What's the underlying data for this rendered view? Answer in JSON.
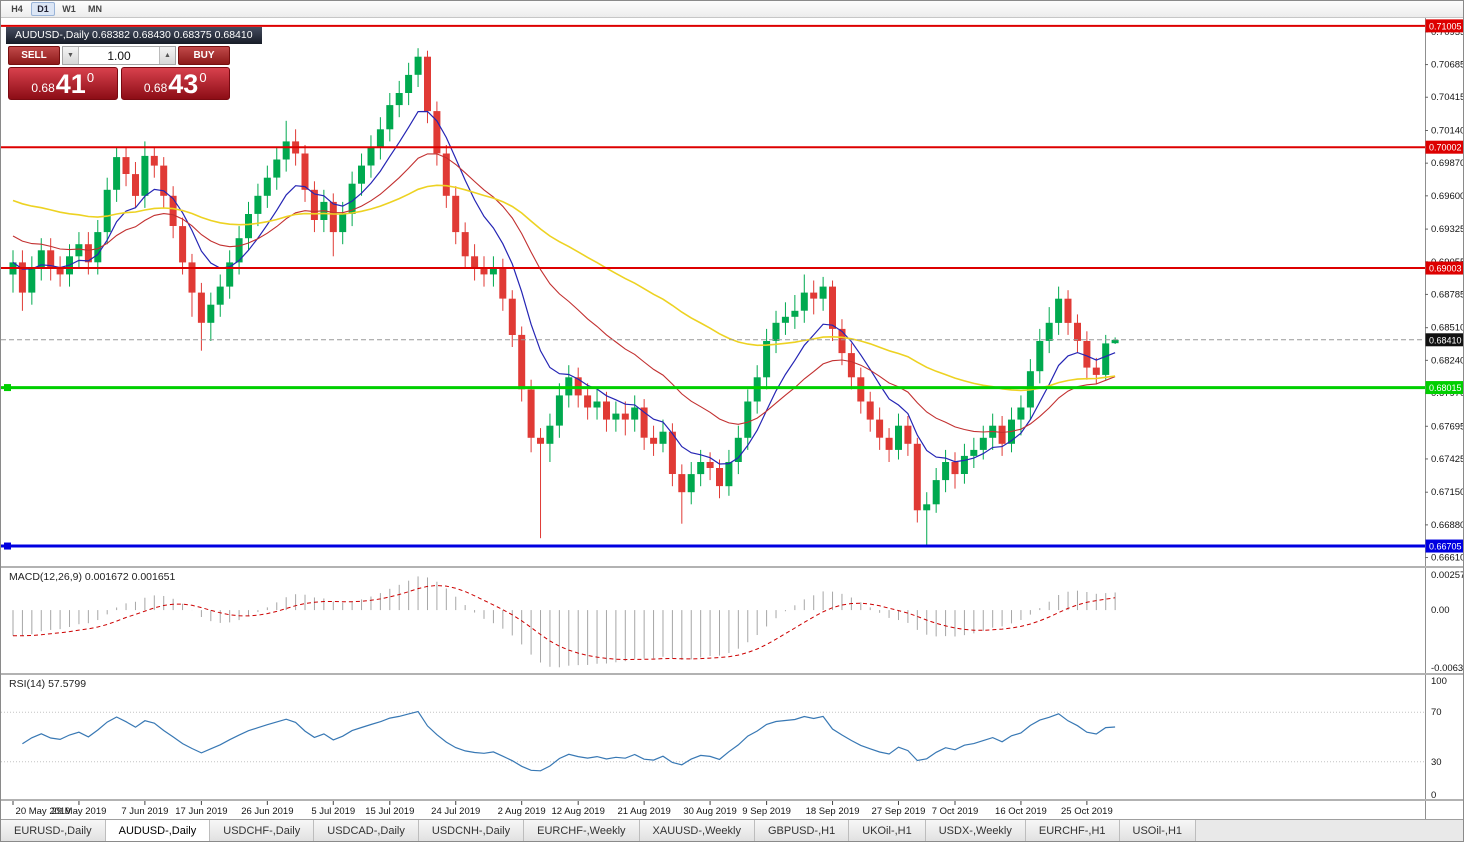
{
  "window": {
    "timeframe_buttons": [
      {
        "label": "H4",
        "active": false
      },
      {
        "label": "D1",
        "active": true
      },
      {
        "label": "W1",
        "active": false
      },
      {
        "label": "MN",
        "active": false
      }
    ],
    "chart_title": "AUDUSD-,Daily  0.68382 0.68430 0.68375 0.68410"
  },
  "trade_panel": {
    "sell_label": "SELL",
    "buy_label": "BUY",
    "volume": "1.00",
    "volume_down_glyph": "▼",
    "volume_up_glyph": "▲",
    "sell_price": {
      "prefix": "0.68",
      "big": "41",
      "sup": "0"
    },
    "buy_price": {
      "prefix": "0.68",
      "big": "43",
      "sup": "0"
    }
  },
  "indicators": {
    "macd": {
      "name": "MACD(12,26,9)",
      "values": "0.001672 0.001651",
      "scale_top": "0.002574",
      "scale_zero": "0.00",
      "scale_bottom": "-0.006326"
    },
    "rsi": {
      "name": "RSI(14)",
      "value": "57.5799",
      "scale": [
        "100",
        "70",
        "30",
        "0"
      ],
      "levels": [
        70,
        30
      ]
    }
  },
  "tabs": [
    {
      "label": "EURUSD-,Daily",
      "active": false
    },
    {
      "label": "AUDUSD-,Daily",
      "active": true
    },
    {
      "label": "USDCHF-,Daily",
      "active": false
    },
    {
      "label": "USDCAD-,Daily",
      "active": false
    },
    {
      "label": "USDCNH-,Daily",
      "active": false
    },
    {
      "label": "EURCHF-,Weekly",
      "active": false
    },
    {
      "label": "XAUUSD-,Weekly",
      "active": false
    },
    {
      "label": "GBPUSD-,H1",
      "active": false
    },
    {
      "label": "UKOil-,H1",
      "active": false
    },
    {
      "label": "USDX-,Weekly",
      "active": false
    },
    {
      "label": "EURCHF-,H1",
      "active": false
    },
    {
      "label": "USOil-,H1",
      "active": false
    }
  ],
  "chart_data": {
    "type": "candlestick",
    "title": "AUDUSD-,Daily",
    "symbol": "AUDUSD-",
    "timeframe": "Daily",
    "y_range": [
      0.6654,
      0.7107
    ],
    "x_step": 9.42,
    "up_color": "#00a94f",
    "down_color": "#e03a35",
    "price_ticks": [
      "0.70955",
      "0.70685",
      "0.70415",
      "0.70140",
      "0.69870",
      "0.69600",
      "0.69325",
      "0.69055",
      "0.68785",
      "0.68510",
      "0.68240",
      "0.67970",
      "0.67695",
      "0.67425",
      "0.67150",
      "0.66880",
      "0.66610"
    ],
    "levels": [
      {
        "price": 0.71005,
        "label": "0.71005",
        "color": "#dd0000",
        "width": 2,
        "handles": false
      },
      {
        "price": 0.70002,
        "label": "0.70002",
        "color": "#dd0000",
        "width": 2,
        "handles": false
      },
      {
        "price": 0.69003,
        "label": "0.69003",
        "color": "#dd0000",
        "width": 2,
        "handles": false
      },
      {
        "price": 0.68015,
        "label": "0.68015",
        "color": "#00cf00",
        "width": 3,
        "handles": true
      },
      {
        "price": 0.66705,
        "label": "0.66705",
        "color": "#0000e0",
        "width": 3,
        "handles": true
      }
    ],
    "current_price": {
      "value": 0.6841,
      "label": "0.68410",
      "badge_color": "#111111"
    },
    "ma": [
      {
        "name": "fast",
        "period": 8,
        "color": "#2525b4",
        "seed": 0.6905,
        "width": 1.2
      },
      {
        "name": "medium",
        "period": 21,
        "color": "#c23030",
        "seed": 0.6929,
        "width": 1.1
      },
      {
        "name": "slow",
        "period": 55,
        "color": "#edd222",
        "seed": 0.6958,
        "width": 1.6
      }
    ],
    "macd_params": [
      12,
      26,
      9
    ],
    "macd_seed_offset": 0.0025,
    "rsi_period": 14,
    "time_labels": [
      [
        "20 May 2019",
        0
      ],
      [
        "29 May 2019",
        7
      ],
      [
        "7 Jun 2019",
        14
      ],
      [
        "17 Jun 2019",
        20
      ],
      [
        "26 Jun 2019",
        27
      ],
      [
        "5 Jul 2019",
        34
      ],
      [
        "15 Jul 2019",
        40
      ],
      [
        "24 Jul 2019",
        47
      ],
      [
        "2 Aug 2019",
        54
      ],
      [
        "12 Aug 2019",
        60
      ],
      [
        "21 Aug 2019",
        67
      ],
      [
        "30 Aug 2019",
        74
      ],
      [
        "9 Sep 2019",
        80
      ],
      [
        "18 Sep 2019",
        87
      ],
      [
        "27 Sep 2019",
        94
      ],
      [
        "7 Oct 2019",
        100
      ],
      [
        "16 Oct 2019",
        107
      ],
      [
        "25 Oct 2019",
        114
      ]
    ],
    "ohlc": [
      [
        0.6895,
        0.6915,
        0.688,
        0.6905
      ],
      [
        0.6905,
        0.6915,
        0.6865,
        0.688
      ],
      [
        0.688,
        0.691,
        0.687,
        0.69
      ],
      [
        0.69,
        0.6925,
        0.689,
        0.6915
      ],
      [
        0.6915,
        0.6925,
        0.689,
        0.69
      ],
      [
        0.69,
        0.691,
        0.6885,
        0.6895
      ],
      [
        0.6895,
        0.692,
        0.6885,
        0.691
      ],
      [
        0.691,
        0.693,
        0.69,
        0.692
      ],
      [
        0.692,
        0.693,
        0.6895,
        0.6905
      ],
      [
        0.6905,
        0.694,
        0.6895,
        0.693
      ],
      [
        0.693,
        0.6975,
        0.692,
        0.6965
      ],
      [
        0.6965,
        0.7,
        0.6955,
        0.6992
      ],
      [
        0.6992,
        0.7,
        0.6968,
        0.6978
      ],
      [
        0.6978,
        0.6988,
        0.695,
        0.696
      ],
      [
        0.696,
        0.7005,
        0.695,
        0.6993
      ],
      [
        0.6993,
        0.7,
        0.6975,
        0.6985
      ],
      [
        0.6985,
        0.6992,
        0.695,
        0.696
      ],
      [
        0.696,
        0.6968,
        0.6925,
        0.6935
      ],
      [
        0.6935,
        0.6942,
        0.6895,
        0.6905
      ],
      [
        0.6905,
        0.6912,
        0.686,
        0.688
      ],
      [
        0.688,
        0.6888,
        0.6832,
        0.6855
      ],
      [
        0.6855,
        0.688,
        0.684,
        0.687
      ],
      [
        0.687,
        0.6895,
        0.686,
        0.6885
      ],
      [
        0.6885,
        0.6915,
        0.6875,
        0.6905
      ],
      [
        0.6905,
        0.6935,
        0.6895,
        0.6925
      ],
      [
        0.6925,
        0.6955,
        0.6915,
        0.6945
      ],
      [
        0.6945,
        0.697,
        0.6935,
        0.696
      ],
      [
        0.696,
        0.6985,
        0.695,
        0.6975
      ],
      [
        0.6975,
        0.7,
        0.6965,
        0.699
      ],
      [
        0.699,
        0.7022,
        0.698,
        0.7005
      ],
      [
        0.7005,
        0.7015,
        0.6985,
        0.6995
      ],
      [
        0.6995,
        0.7002,
        0.6955,
        0.6965
      ],
      [
        0.6965,
        0.6972,
        0.693,
        0.694
      ],
      [
        0.694,
        0.6965,
        0.693,
        0.6955
      ],
      [
        0.6955,
        0.6962,
        0.691,
        0.693
      ],
      [
        0.693,
        0.6955,
        0.692,
        0.6945
      ],
      [
        0.6945,
        0.698,
        0.6935,
        0.697
      ],
      [
        0.697,
        0.6995,
        0.696,
        0.6985
      ],
      [
        0.6985,
        0.701,
        0.6975,
        0.7
      ],
      [
        0.7,
        0.7025,
        0.699,
        0.7015
      ],
      [
        0.7015,
        0.7045,
        0.7005,
        0.7035
      ],
      [
        0.7035,
        0.7055,
        0.7025,
        0.7045
      ],
      [
        0.7045,
        0.707,
        0.7035,
        0.706
      ],
      [
        0.706,
        0.7082,
        0.705,
        0.7075
      ],
      [
        0.7075,
        0.708,
        0.702,
        0.703
      ],
      [
        0.703,
        0.7038,
        0.6985,
        0.6995
      ],
      [
        0.6995,
        0.7002,
        0.695,
        0.696
      ],
      [
        0.696,
        0.6968,
        0.692,
        0.693
      ],
      [
        0.693,
        0.6938,
        0.69,
        0.691
      ],
      [
        0.691,
        0.692,
        0.689,
        0.69
      ],
      [
        0.69,
        0.691,
        0.6885,
        0.6895
      ],
      [
        0.6895,
        0.691,
        0.6885,
        0.69
      ],
      [
        0.69,
        0.6908,
        0.6865,
        0.6875
      ],
      [
        0.6875,
        0.6882,
        0.6835,
        0.6845
      ],
      [
        0.6845,
        0.6852,
        0.679,
        0.68
      ],
      [
        0.68,
        0.6808,
        0.6748,
        0.676
      ],
      [
        0.676,
        0.6768,
        0.6677,
        0.6755
      ],
      [
        0.6755,
        0.678,
        0.674,
        0.677
      ],
      [
        0.677,
        0.6805,
        0.676,
        0.6795
      ],
      [
        0.6795,
        0.682,
        0.6785,
        0.681
      ],
      [
        0.681,
        0.6818,
        0.6785,
        0.6795
      ],
      [
        0.6795,
        0.6805,
        0.6775,
        0.6785
      ],
      [
        0.6785,
        0.68,
        0.6775,
        0.679
      ],
      [
        0.679,
        0.6798,
        0.6765,
        0.6775
      ],
      [
        0.6775,
        0.679,
        0.6765,
        0.678
      ],
      [
        0.678,
        0.679,
        0.6762,
        0.6775
      ],
      [
        0.6775,
        0.6795,
        0.6765,
        0.6785
      ],
      [
        0.6785,
        0.6792,
        0.675,
        0.676
      ],
      [
        0.676,
        0.677,
        0.6745,
        0.6755
      ],
      [
        0.6755,
        0.6775,
        0.6748,
        0.6765
      ],
      [
        0.6765,
        0.6772,
        0.672,
        0.673
      ],
      [
        0.673,
        0.6738,
        0.6689,
        0.6715
      ],
      [
        0.6715,
        0.674,
        0.6705,
        0.673
      ],
      [
        0.673,
        0.675,
        0.672,
        0.674
      ],
      [
        0.674,
        0.6748,
        0.6725,
        0.6735
      ],
      [
        0.6735,
        0.6742,
        0.671,
        0.672
      ],
      [
        0.672,
        0.675,
        0.6712,
        0.674
      ],
      [
        0.674,
        0.677,
        0.673,
        0.676
      ],
      [
        0.676,
        0.68,
        0.675,
        0.679
      ],
      [
        0.679,
        0.682,
        0.678,
        0.681
      ],
      [
        0.681,
        0.685,
        0.68,
        0.684
      ],
      [
        0.684,
        0.6865,
        0.683,
        0.6855
      ],
      [
        0.6855,
        0.6872,
        0.6845,
        0.686
      ],
      [
        0.686,
        0.6878,
        0.685,
        0.6865
      ],
      [
        0.6865,
        0.6895,
        0.6855,
        0.688
      ],
      [
        0.688,
        0.689,
        0.6862,
        0.6875
      ],
      [
        0.6875,
        0.6893,
        0.6865,
        0.6885
      ],
      [
        0.6885,
        0.689,
        0.684,
        0.685
      ],
      [
        0.685,
        0.6858,
        0.682,
        0.683
      ],
      [
        0.683,
        0.6838,
        0.68,
        0.681
      ],
      [
        0.681,
        0.6818,
        0.678,
        0.679
      ],
      [
        0.679,
        0.6798,
        0.6765,
        0.6775
      ],
      [
        0.6775,
        0.6785,
        0.675,
        0.676
      ],
      [
        0.676,
        0.6768,
        0.674,
        0.675
      ],
      [
        0.675,
        0.678,
        0.6742,
        0.677
      ],
      [
        0.677,
        0.6778,
        0.6745,
        0.6755
      ],
      [
        0.6755,
        0.676,
        0.669,
        0.67
      ],
      [
        0.67,
        0.6715,
        0.667,
        0.6705
      ],
      [
        0.6705,
        0.6735,
        0.6698,
        0.6725
      ],
      [
        0.6725,
        0.675,
        0.6715,
        0.674
      ],
      [
        0.674,
        0.6748,
        0.6718,
        0.673
      ],
      [
        0.673,
        0.6755,
        0.6722,
        0.6745
      ],
      [
        0.6745,
        0.676,
        0.6735,
        0.675
      ],
      [
        0.675,
        0.677,
        0.6742,
        0.676
      ],
      [
        0.676,
        0.678,
        0.675,
        0.677
      ],
      [
        0.677,
        0.6778,
        0.6745,
        0.6755
      ],
      [
        0.6755,
        0.6785,
        0.6748,
        0.6775
      ],
      [
        0.6775,
        0.6795,
        0.6762,
        0.6785
      ],
      [
        0.6785,
        0.6825,
        0.6775,
        0.6815
      ],
      [
        0.6815,
        0.685,
        0.6805,
        0.684
      ],
      [
        0.684,
        0.6868,
        0.683,
        0.6855
      ],
      [
        0.6855,
        0.6885,
        0.6845,
        0.6875
      ],
      [
        0.6875,
        0.6882,
        0.6845,
        0.6855
      ],
      [
        0.6855,
        0.6862,
        0.683,
        0.684
      ],
      [
        0.684,
        0.6848,
        0.6808,
        0.6818
      ],
      [
        0.6818,
        0.6826,
        0.6804,
        0.6812
      ],
      [
        0.6812,
        0.6845,
        0.6808,
        0.6838
      ],
      [
        0.68382,
        0.6843,
        0.68375,
        0.6841
      ]
    ]
  }
}
